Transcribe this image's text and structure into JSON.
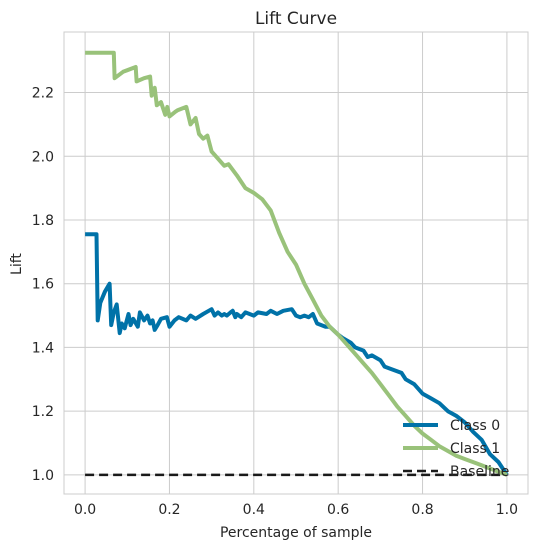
{
  "chart_data": {
    "type": "line",
    "title": "Lift Curve",
    "xlabel": "Percentage of sample",
    "ylabel": "Lift",
    "xlim": [
      -0.05,
      1.05
    ],
    "ylim": [
      0.94,
      2.39
    ],
    "xticks": [
      "0.0",
      "0.2",
      "0.4",
      "0.6",
      "0.8",
      "1.0"
    ],
    "yticks": [
      "1.0",
      "1.2",
      "1.4",
      "1.6",
      "1.8",
      "2.0",
      "2.2"
    ],
    "grid": true,
    "legend_position": "lower-right",
    "series": [
      {
        "name": "Class 0",
        "color": "#0072a8",
        "dash": "solid",
        "x": [
          0.0,
          0.027,
          0.03,
          0.036,
          0.047,
          0.058,
          0.062,
          0.068,
          0.075,
          0.082,
          0.087,
          0.094,
          0.103,
          0.108,
          0.114,
          0.125,
          0.13,
          0.14,
          0.148,
          0.154,
          0.16,
          0.165,
          0.172,
          0.18,
          0.194,
          0.2,
          0.212,
          0.222,
          0.24,
          0.25,
          0.262,
          0.28,
          0.3,
          0.307,
          0.315,
          0.324,
          0.33,
          0.336,
          0.345,
          0.35,
          0.356,
          0.36,
          0.37,
          0.38,
          0.4,
          0.41,
          0.43,
          0.44,
          0.455,
          0.47,
          0.49,
          0.5,
          0.51,
          0.52,
          0.53,
          0.54,
          0.55,
          0.56,
          0.57,
          0.58,
          0.6,
          0.61,
          0.63,
          0.64,
          0.66,
          0.67,
          0.68,
          0.7,
          0.71,
          0.73,
          0.75,
          0.76,
          0.78,
          0.8,
          0.82,
          0.84,
          0.86,
          0.88,
          0.9,
          0.92,
          0.94,
          0.96,
          0.98,
          1.0
        ],
        "y": [
          1.755,
          1.755,
          1.485,
          1.54,
          1.575,
          1.6,
          1.47,
          1.51,
          1.535,
          1.445,
          1.475,
          1.46,
          1.505,
          1.47,
          1.49,
          1.465,
          1.51,
          1.485,
          1.5,
          1.475,
          1.485,
          1.455,
          1.47,
          1.49,
          1.495,
          1.465,
          1.485,
          1.495,
          1.485,
          1.5,
          1.49,
          1.505,
          1.52,
          1.5,
          1.51,
          1.5,
          1.505,
          1.5,
          1.51,
          1.515,
          1.495,
          1.505,
          1.495,
          1.51,
          1.5,
          1.51,
          1.505,
          1.515,
          1.505,
          1.515,
          1.52,
          1.5,
          1.495,
          1.5,
          1.495,
          1.505,
          1.475,
          1.47,
          1.465,
          1.465,
          1.44,
          1.43,
          1.415,
          1.4,
          1.39,
          1.37,
          1.375,
          1.36,
          1.34,
          1.33,
          1.32,
          1.3,
          1.285,
          1.255,
          1.24,
          1.225,
          1.2,
          1.185,
          1.165,
          1.135,
          1.11,
          1.065,
          1.04,
          1.0
        ]
      },
      {
        "name": "Class 1",
        "color": "#99c27a",
        "dash": "solid",
        "x": [
          0.0,
          0.068,
          0.07,
          0.09,
          0.12,
          0.122,
          0.14,
          0.154,
          0.158,
          0.165,
          0.17,
          0.18,
          0.19,
          0.195,
          0.2,
          0.214,
          0.22,
          0.24,
          0.25,
          0.262,
          0.27,
          0.28,
          0.29,
          0.3,
          0.31,
          0.33,
          0.34,
          0.36,
          0.38,
          0.4,
          0.42,
          0.44,
          0.46,
          0.48,
          0.5,
          0.52,
          0.54,
          0.56,
          0.58,
          0.6,
          0.62,
          0.64,
          0.66,
          0.68,
          0.7,
          0.72,
          0.74,
          0.76,
          0.78,
          0.8,
          0.82,
          0.84,
          0.86,
          0.88,
          0.9,
          0.92,
          0.94,
          0.96,
          0.98,
          1.0
        ],
        "y": [
          2.325,
          2.325,
          2.245,
          2.265,
          2.28,
          2.235,
          2.245,
          2.25,
          2.19,
          2.215,
          2.16,
          2.17,
          2.13,
          2.155,
          2.125,
          2.14,
          2.145,
          2.155,
          2.1,
          2.12,
          2.07,
          2.055,
          2.065,
          2.015,
          2.0,
          1.97,
          1.975,
          1.94,
          1.9,
          1.885,
          1.865,
          1.83,
          1.76,
          1.7,
          1.66,
          1.6,
          1.55,
          1.5,
          1.465,
          1.44,
          1.41,
          1.38,
          1.35,
          1.32,
          1.285,
          1.25,
          1.215,
          1.185,
          1.155,
          1.13,
          1.11,
          1.09,
          1.075,
          1.06,
          1.05,
          1.04,
          1.03,
          1.02,
          1.01,
          1.0
        ]
      },
      {
        "name": "Baseline",
        "color": "#1a1a1a",
        "dash": "dashed",
        "x": [
          0.0,
          1.0
        ],
        "y": [
          1.0,
          1.0
        ]
      }
    ]
  }
}
